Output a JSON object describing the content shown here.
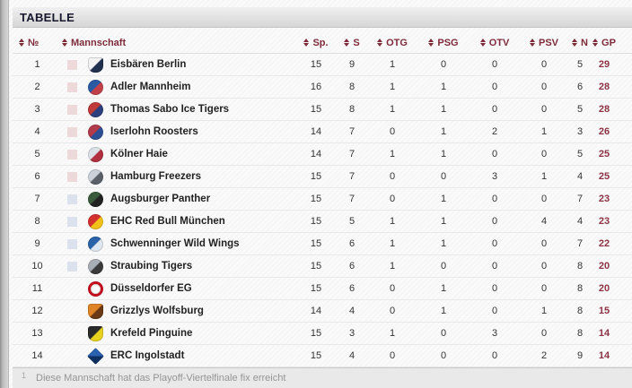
{
  "panel": {
    "title": "TABELLE"
  },
  "colors": {
    "header_text": "#7d2b3a",
    "points_text": "#8b3344",
    "playoff_pink": "#edd9da",
    "playoff_blue": "#dbe2ee",
    "titlebar_gradient_top": "#f0f0f0",
    "titlebar_gradient_bottom": "#d6d6d6"
  },
  "table": {
    "columns": [
      {
        "key": "rank",
        "label": "№",
        "sortable": true
      },
      {
        "key": "team",
        "label": "Mannschaft",
        "sortable": true
      },
      {
        "key": "sp",
        "label": "Sp.",
        "sortable": true
      },
      {
        "key": "s",
        "label": "S",
        "sortable": true
      },
      {
        "key": "otg",
        "label": "OTG",
        "sortable": true
      },
      {
        "key": "psg",
        "label": "PSG",
        "sortable": true
      },
      {
        "key": "otv",
        "label": "OTV",
        "sortable": true
      },
      {
        "key": "psv",
        "label": "PSV",
        "sortable": true
      },
      {
        "key": "n",
        "label": "N",
        "sortable": true
      },
      {
        "key": "gp",
        "label": "GP",
        "sortable": true
      }
    ],
    "rows": [
      {
        "rank": 1,
        "mark": "pink",
        "team": "Eisbären Berlin",
        "logo": {
          "name": "eisbaeren-berlin-logo",
          "shape": "shield",
          "c1": "#f2f2f2",
          "c2": "#20304e"
        },
        "sp": 15,
        "s": 9,
        "otg": 1,
        "psg": 0,
        "otv": 0,
        "psv": 0,
        "n": 5,
        "gp": 29
      },
      {
        "rank": 2,
        "mark": "pink",
        "team": "Adler Mannheim",
        "logo": {
          "name": "adler-mannheim-logo",
          "shape": "circle",
          "c1": "#2b5aa5",
          "c2": "#c2404a"
        },
        "sp": 16,
        "s": 8,
        "otg": 1,
        "psg": 1,
        "otv": 0,
        "psv": 0,
        "n": 6,
        "gp": 28
      },
      {
        "rank": 3,
        "mark": "pink",
        "team": "Thomas Sabo Ice Tigers",
        "logo": {
          "name": "ice-tigers-logo",
          "shape": "circle",
          "c1": "#c03a3a",
          "c2": "#2d3f7c"
        },
        "sp": 15,
        "s": 8,
        "otg": 1,
        "psg": 1,
        "otv": 0,
        "psv": 0,
        "n": 5,
        "gp": 28
      },
      {
        "rank": 4,
        "mark": "pink",
        "team": "Iserlohn Roosters",
        "logo": {
          "name": "iserlohn-roosters-logo",
          "shape": "circle",
          "c1": "#b23a4a",
          "c2": "#2d4f95"
        },
        "sp": 14,
        "s": 7,
        "otg": 0,
        "psg": 1,
        "otv": 2,
        "psv": 1,
        "n": 3,
        "gp": 26
      },
      {
        "rank": 5,
        "mark": "pink",
        "team": "Kölner Haie",
        "logo": {
          "name": "koelner-haie-logo",
          "shape": "circle",
          "c1": "#dde2e8",
          "c2": "#b03040"
        },
        "sp": 14,
        "s": 7,
        "otg": 1,
        "psg": 1,
        "otv": 0,
        "psv": 0,
        "n": 5,
        "gp": 25
      },
      {
        "rank": 6,
        "mark": "pink",
        "team": "Hamburg Freezers",
        "logo": {
          "name": "hamburg-freezers-logo",
          "shape": "circle",
          "c1": "#ccd2da",
          "c2": "#5a6068"
        },
        "sp": 15,
        "s": 7,
        "otg": 0,
        "psg": 0,
        "otv": 3,
        "psv": 1,
        "n": 4,
        "gp": 25
      },
      {
        "rank": 7,
        "mark": "blue",
        "team": "Augsburger Panther",
        "logo": {
          "name": "augsburger-panther-logo",
          "shape": "circle",
          "c1": "#3a5a3c",
          "c2": "#222222"
        },
        "sp": 15,
        "s": 7,
        "otg": 0,
        "psg": 1,
        "otv": 0,
        "psv": 0,
        "n": 7,
        "gp": 23
      },
      {
        "rank": 8,
        "mark": "blue",
        "team": "EHC Red Bull München",
        "logo": {
          "name": "red-bull-muenchen-logo",
          "shape": "circle",
          "c1": "#d33030",
          "c2": "#f2c21a"
        },
        "sp": 15,
        "s": 5,
        "otg": 1,
        "psg": 1,
        "otv": 0,
        "psv": 4,
        "n": 4,
        "gp": 23
      },
      {
        "rank": 9,
        "mark": "blue",
        "team": "Schwenninger Wild Wings",
        "logo": {
          "name": "wild-wings-logo",
          "shape": "circle",
          "c1": "#2a62a8",
          "c2": "#dfe7f0"
        },
        "sp": 15,
        "s": 6,
        "otg": 1,
        "psg": 1,
        "otv": 0,
        "psv": 0,
        "n": 7,
        "gp": 22
      },
      {
        "rank": 10,
        "mark": "blue",
        "team": "Straubing Tigers",
        "logo": {
          "name": "straubing-tigers-logo",
          "shape": "circle",
          "c1": "#a8aeb6",
          "c2": "#3a3a3a"
        },
        "sp": 15,
        "s": 6,
        "otg": 1,
        "psg": 0,
        "otv": 0,
        "psv": 0,
        "n": 8,
        "gp": 20
      },
      {
        "rank": 11,
        "mark": null,
        "team": "Düsseldorfer EG",
        "logo": {
          "name": "duesseldorfer-eg-logo",
          "shape": "circle",
          "style": "ring",
          "c1": "#ffffff",
          "c2": "#c01020"
        },
        "sp": 15,
        "s": 6,
        "otg": 0,
        "psg": 1,
        "otv": 0,
        "psv": 0,
        "n": 8,
        "gp": 20
      },
      {
        "rank": 12,
        "mark": null,
        "team": "Grizzlys Wolfsburg",
        "logo": {
          "name": "grizzlys-wolfsburg-logo",
          "shape": "shield",
          "c1": "#e08428",
          "c2": "#6b3a14"
        },
        "sp": 14,
        "s": 4,
        "otg": 0,
        "psg": 1,
        "otv": 0,
        "psv": 1,
        "n": 8,
        "gp": 15
      },
      {
        "rank": 13,
        "mark": null,
        "team": "Krefeld Pinguine",
        "logo": {
          "name": "krefeld-pinguine-logo",
          "shape": "shield",
          "c1": "#2a2a2a",
          "c2": "#e8d220"
        },
        "sp": 15,
        "s": 3,
        "otg": 1,
        "psg": 0,
        "otv": 3,
        "psv": 0,
        "n": 8,
        "gp": 14
      },
      {
        "rank": 14,
        "mark": null,
        "team": "ERC Ingolstadt",
        "logo": {
          "name": "erc-ingolstadt-logo",
          "shape": "diamond",
          "c1": "#2a62b0",
          "c2": "#0e2f60"
        },
        "sp": 15,
        "s": 4,
        "otg": 0,
        "psg": 0,
        "otv": 0,
        "psv": 2,
        "n": 9,
        "gp": 14
      }
    ],
    "footnote": {
      "marker": "1",
      "text": "Diese Mannschaft hat das Playoff-Viertelfinale fix erreicht"
    }
  }
}
